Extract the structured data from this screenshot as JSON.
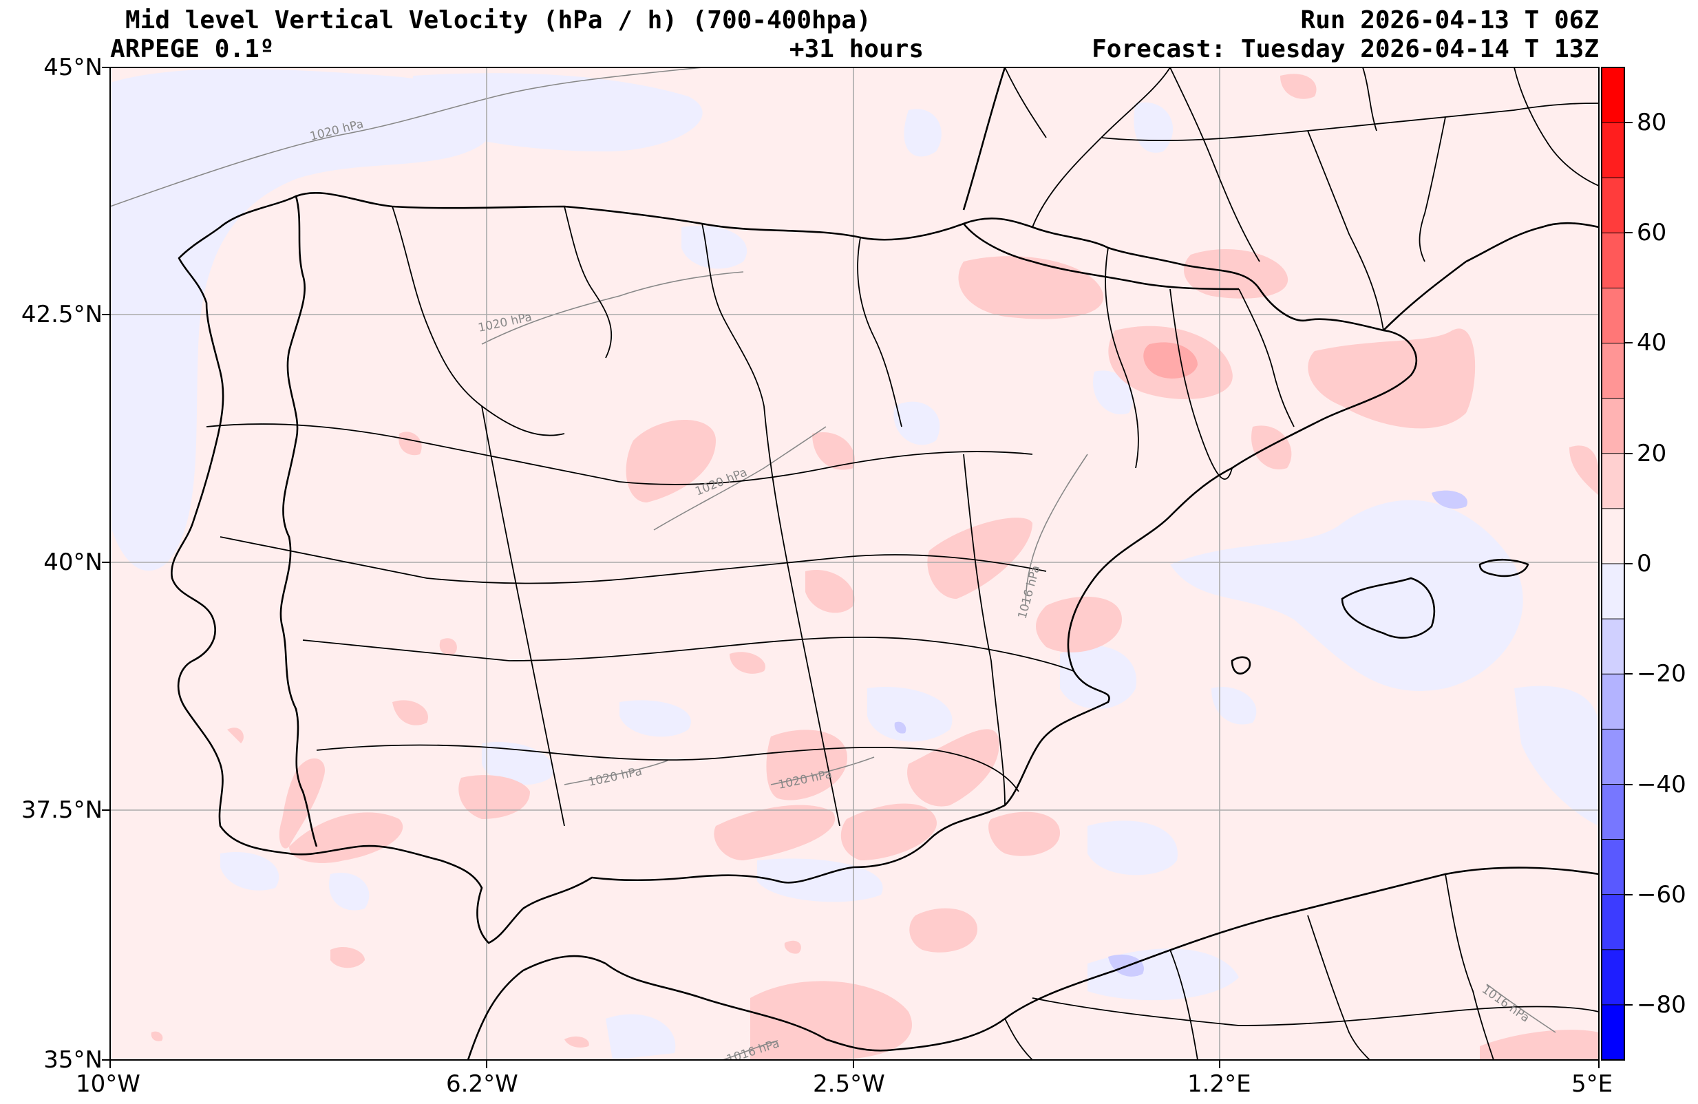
{
  "header": {
    "title": "Mid level Vertical Velocity (hPa / h)  (700-400hpa)",
    "model": "ARPEGE 0.1º",
    "lead_time": "+31 hours",
    "run": "Run 2026-04-13 T 06Z",
    "forecast": "Forecast: Tuesday 2026-04-14 T 13Z"
  },
  "map": {
    "lat_ticks": [
      "45°N",
      "42.5°N",
      "40°N",
      "37.5°N",
      "35°N"
    ],
    "lon_ticks": [
      "10°W",
      "6.2°W",
      "2.5°W",
      "1.2°E",
      "5°E"
    ],
    "isobar_labels": [
      "1020 hPa",
      "1020 hPa",
      "1020 hPa",
      "1016 hPa",
      "1020 hPa",
      "1020 hPa",
      "1016 hPa",
      "1016 hPa"
    ]
  },
  "colorbar": {
    "tick_labels": [
      "80",
      "60",
      "40",
      "20",
      "0",
      "−20",
      "−40",
      "−60",
      "−80"
    ],
    "min": -90,
    "max": 90,
    "step": 10
  },
  "colors": {
    "background_positive_weak": "#ffeeee",
    "positive_light": "#ffcccc",
    "positive_mid": "#ffaaaa",
    "negative_light": "#eeeeff",
    "negative_mid": "#ccccff",
    "coast": "#000000",
    "isobar": "#888888",
    "grid": "#aaaaaa"
  }
}
